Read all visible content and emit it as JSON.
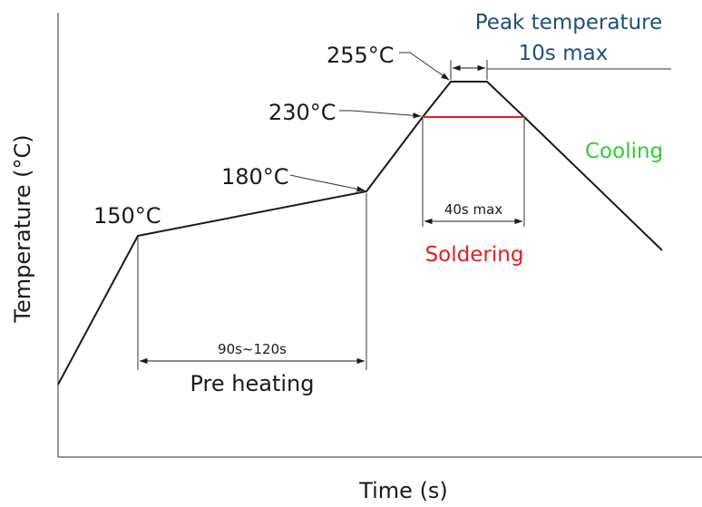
{
  "axes": {
    "ylabel": "Temperature (°C)",
    "xlabel": "Time (s)"
  },
  "temperatures": {
    "t150": "150°C",
    "t180": "180°C",
    "t230": "230°C",
    "t255": "255°C"
  },
  "annotations": {
    "peak_line1": "Peak temperature",
    "peak_line2": "10s max",
    "cooling": "Cooling",
    "soldering": "Soldering",
    "soldering_duration": "40s max",
    "preheat_duration": "90s~120s",
    "preheat": "Pre heating"
  },
  "colors": {
    "line": "#1a1a1a",
    "peak_text": "#1f4e79",
    "cooling_text": "#33cc33",
    "soldering": "#e02020"
  }
}
